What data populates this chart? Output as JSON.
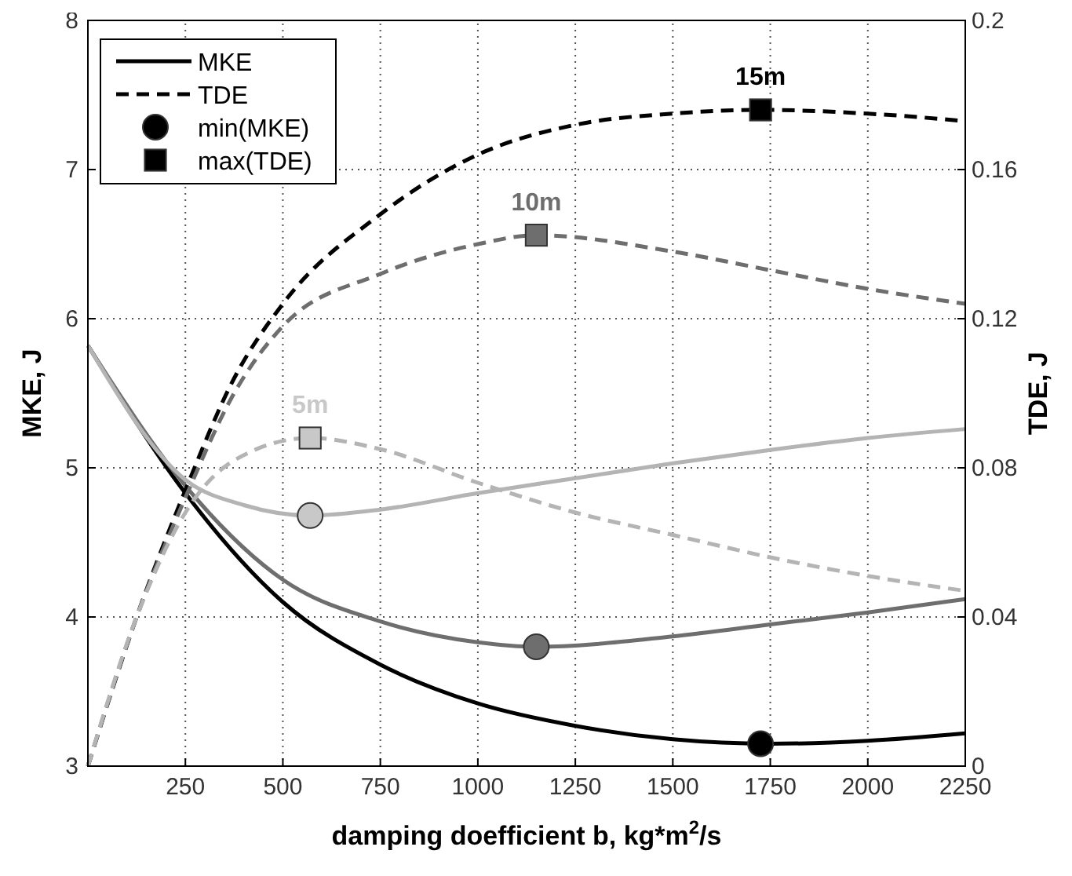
{
  "chart_data": {
    "type": "line",
    "xlabel": "damping doefficient b, kg*m$^{2}$/s",
    "ylabel": "MKE, J",
    "y2label": "TDE, J",
    "xlim": [
      0,
      2250
    ],
    "xticks": [
      250,
      500,
      750,
      1000,
      1250,
      1500,
      1750,
      2000,
      2250
    ],
    "ylim": [
      3,
      8
    ],
    "yticks": [
      3,
      4,
      5,
      6,
      7,
      8
    ],
    "y2lim": [
      0,
      0.2
    ],
    "y2ticks": [
      0,
      0.04,
      0.08,
      0.12,
      0.16,
      0.2
    ],
    "grid": true,
    "legend": "top left",
    "series": [
      {
        "name": "MKE",
        "color": "#000000",
        "line_style": "solid",
        "x": [
          0,
          250,
          500,
          750,
          1000,
          1250,
          1500,
          1750,
          2000,
          2250
        ],
        "values": [
          5.82,
          4.83,
          4.1,
          3.68,
          3.42,
          3.27,
          3.18,
          3.15,
          3.17,
          3.22
        ]
      },
      {
        "color": "#6e6e6e",
        "line_style": "solid",
        "x": [
          0,
          250,
          500,
          750,
          1000,
          1150,
          1500,
          1750,
          2000,
          2250
        ],
        "values": [
          5.82,
          4.88,
          4.25,
          3.97,
          3.83,
          3.8,
          3.87,
          3.95,
          4.03,
          4.12
        ]
      },
      {
        "color": "#b4b4b4",
        "line_style": "solid",
        "x": [
          0,
          250,
          400,
          570,
          750,
          1000,
          1250,
          1500,
          1750,
          2000,
          2250
        ],
        "values": [
          5.82,
          4.92,
          4.75,
          4.68,
          4.72,
          4.83,
          4.93,
          5.03,
          5.12,
          5.2,
          5.26
        ]
      },
      {
        "name": "TDE",
        "axis": "y2",
        "color": "#000000",
        "line_style": "dashed",
        "x": [
          0,
          125,
          250,
          375,
          500,
          750,
          1000,
          1250,
          1500,
          1725,
          2000,
          2250
        ],
        "values": [
          0,
          0.04,
          0.074,
          0.104,
          0.124,
          0.148,
          0.164,
          0.172,
          0.175,
          0.176,
          0.175,
          0.173
        ]
      },
      {
        "axis": "y2",
        "color": "#6e6e6e",
        "line_style": "dashed",
        "x": [
          0,
          125,
          250,
          375,
          500,
          750,
          1000,
          1150,
          1500,
          1750,
          2000,
          2250
        ],
        "values": [
          0,
          0.04,
          0.072,
          0.1,
          0.118,
          0.132,
          0.14,
          0.1424,
          0.138,
          0.133,
          0.128,
          0.124
        ]
      },
      {
        "axis": "y2",
        "color": "#b4b4b4",
        "line_style": "dashed",
        "x": [
          0,
          125,
          250,
          375,
          570,
          750,
          1000,
          1250,
          1500,
          1750,
          2000,
          2250
        ],
        "values": [
          0,
          0.04,
          0.068,
          0.082,
          0.088,
          0.085,
          0.076,
          0.068,
          0.062,
          0.056,
          0.051,
          0.047
        ]
      },
      {
        "name": "min(MKE)",
        "type": "scatter",
        "marker": "circle",
        "color": "#000000",
        "x": [
          1725
        ],
        "values": [
          3.15
        ]
      },
      {
        "type": "scatter",
        "marker": "circle",
        "color": "#6e6e6e",
        "x": [
          1150
        ],
        "values": [
          3.8
        ]
      },
      {
        "type": "scatter",
        "marker": "circle",
        "color": "#c8c8c8",
        "x": [
          570
        ],
        "values": [
          4.68
        ]
      },
      {
        "name": "max(TDE)",
        "type": "scatter",
        "marker": "square",
        "axis": "y2",
        "color": "#000000",
        "x": [
          1725
        ],
        "values": [
          0.176
        ]
      },
      {
        "type": "scatter",
        "marker": "square",
        "axis": "y2",
        "color": "#6e6e6e",
        "x": [
          1150
        ],
        "values": [
          0.1424
        ]
      },
      {
        "type": "scatter",
        "marker": "square",
        "axis": "y2",
        "color": "#c8c8c8",
        "x": [
          570
        ],
        "values": [
          0.088
        ]
      }
    ],
    "annotations": [
      {
        "text": "15m",
        "x": 1725,
        "y": 7.4
      },
      {
        "text": "10m",
        "x": 1150,
        "y": 6.56
      },
      {
        "text": "5m",
        "x": 570,
        "y": 5.2
      }
    ]
  }
}
